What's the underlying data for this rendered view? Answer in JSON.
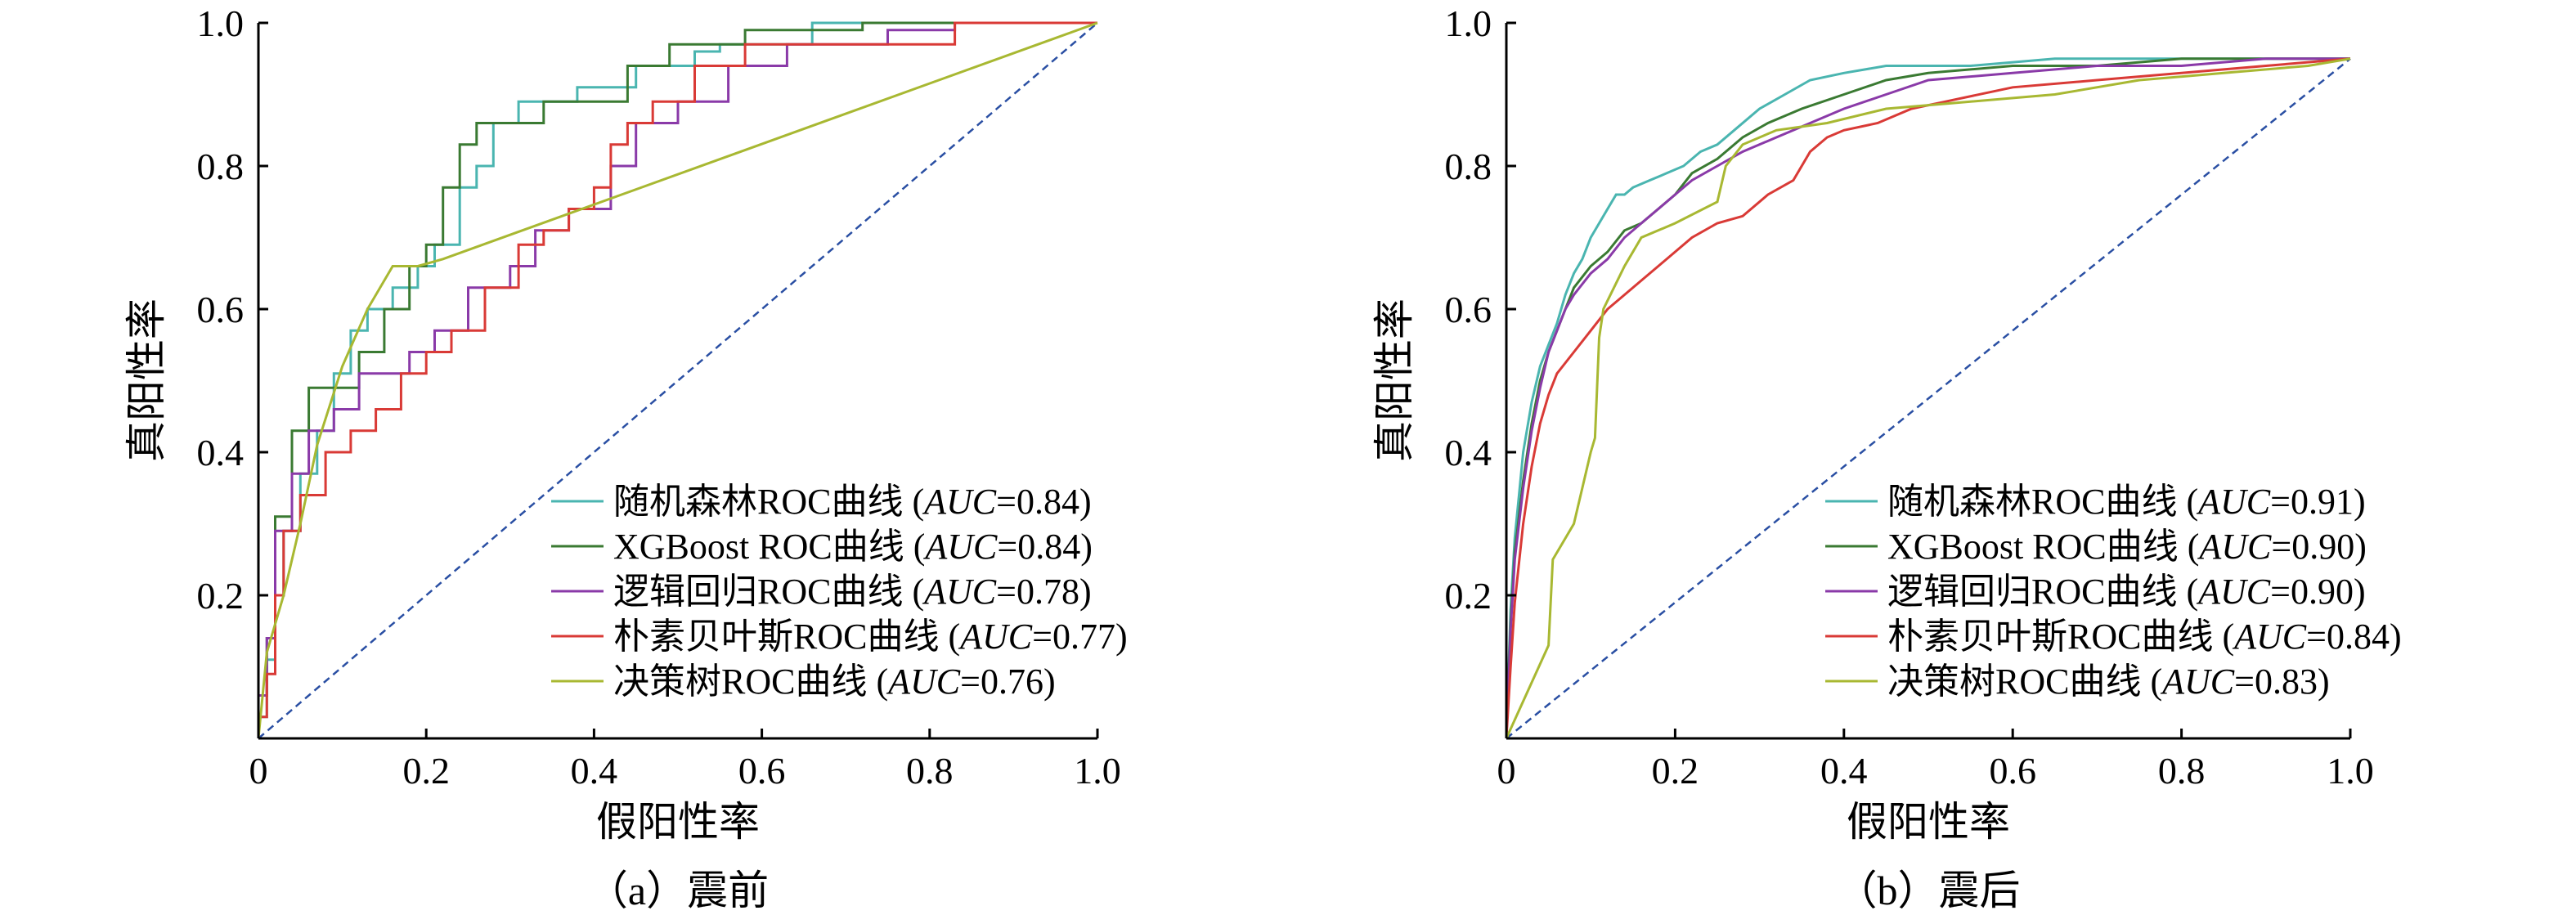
{
  "chart_data": [
    {
      "type": "line",
      "caption": "（a）震前",
      "xlabel": "假阳性率",
      "ylabel": "真阳性率",
      "xlim": [
        0,
        1
      ],
      "ylim": [
        0,
        1
      ],
      "xticks": [
        "0",
        "0.2",
        "0.4",
        "0.6",
        "0.8",
        "1.0"
      ],
      "yticks": [
        "0.2",
        "0.4",
        "0.6",
        "0.8",
        "1.0"
      ],
      "grid": false,
      "legend_position": "bottom-right",
      "diagonal": {
        "x": [
          0,
          1
        ],
        "y": [
          0,
          1
        ],
        "color": "#2a4fa3",
        "style": "dashed"
      },
      "series": [
        {
          "name": "随机森林ROC曲线",
          "auc_label": "AUC",
          "auc_value": "=0.84",
          "color": "#4ab5b0",
          "x": [
            0,
            0,
            0.01,
            0.01,
            0.02,
            0.02,
            0.03,
            0.03,
            0.05,
            0.05,
            0.07,
            0.07,
            0.09,
            0.09,
            0.11,
            0.11,
            0.13,
            0.13,
            0.16,
            0.16,
            0.19,
            0.19,
            0.21,
            0.21,
            0.24,
            0.24,
            0.26,
            0.26,
            0.28,
            0.28,
            0.31,
            0.31,
            0.38,
            0.38,
            0.45,
            0.45,
            0.52,
            0.52,
            0.55,
            0.55,
            0.66,
            0.66,
            0.78,
            0.78,
            1.0
          ],
          "y": [
            0,
            0.03,
            0.03,
            0.11,
            0.11,
            0.2,
            0.2,
            0.29,
            0.29,
            0.37,
            0.37,
            0.43,
            0.43,
            0.51,
            0.51,
            0.57,
            0.57,
            0.6,
            0.6,
            0.63,
            0.63,
            0.66,
            0.66,
            0.69,
            0.69,
            0.77,
            0.77,
            0.8,
            0.8,
            0.86,
            0.86,
            0.89,
            0.89,
            0.91,
            0.91,
            0.94,
            0.94,
            0.96,
            0.96,
            0.97,
            0.97,
            1.0,
            1.0,
            1.0,
            1.0
          ]
        },
        {
          "name": "XGBoost ROC曲线",
          "auc_label": "AUC",
          "auc_value": "=0.84",
          "color": "#3a7a32",
          "x": [
            0,
            0,
            0.01,
            0.01,
            0.02,
            0.02,
            0.04,
            0.04,
            0.06,
            0.06,
            0.12,
            0.12,
            0.15,
            0.15,
            0.18,
            0.18,
            0.2,
            0.2,
            0.22,
            0.22,
            0.24,
            0.24,
            0.26,
            0.26,
            0.29,
            0.29,
            0.34,
            0.34,
            0.44,
            0.44,
            0.49,
            0.49,
            0.58,
            0.58,
            0.72,
            0.72,
            1.0
          ],
          "y": [
            0,
            0.06,
            0.06,
            0.14,
            0.14,
            0.31,
            0.31,
            0.43,
            0.43,
            0.49,
            0.49,
            0.54,
            0.54,
            0.6,
            0.6,
            0.66,
            0.66,
            0.69,
            0.69,
            0.77,
            0.77,
            0.83,
            0.83,
            0.86,
            0.86,
            0.86,
            0.86,
            0.89,
            0.89,
            0.94,
            0.94,
            0.97,
            0.97,
            0.99,
            0.99,
            1.0,
            1.0
          ]
        },
        {
          "name": "逻辑回归ROC曲线",
          "auc_label": "AUC",
          "auc_value": "=0.78",
          "color": "#8a3aa8",
          "x": [
            0,
            0,
            0.01,
            0.01,
            0.02,
            0.02,
            0.04,
            0.04,
            0.06,
            0.06,
            0.09,
            0.09,
            0.12,
            0.12,
            0.18,
            0.18,
            0.21,
            0.21,
            0.25,
            0.25,
            0.3,
            0.3,
            0.33,
            0.33,
            0.37,
            0.37,
            0.42,
            0.42,
            0.45,
            0.45,
            0.5,
            0.5,
            0.56,
            0.56,
            0.63,
            0.63,
            0.7,
            0.7,
            0.75,
            0.75,
            0.83,
            0.83,
            1.0
          ],
          "y": [
            0,
            0.06,
            0.06,
            0.14,
            0.14,
            0.29,
            0.29,
            0.37,
            0.37,
            0.43,
            0.43,
            0.46,
            0.46,
            0.51,
            0.51,
            0.54,
            0.54,
            0.57,
            0.57,
            0.63,
            0.63,
            0.66,
            0.66,
            0.71,
            0.71,
            0.74,
            0.74,
            0.8,
            0.8,
            0.86,
            0.86,
            0.89,
            0.89,
            0.94,
            0.94,
            0.97,
            0.97,
            0.97,
            0.97,
            0.99,
            0.99,
            1.0,
            1.0
          ]
        },
        {
          "name": "朴素贝叶斯ROC曲线",
          "auc_label": "AUC",
          "auc_value": "=0.77",
          "color": "#d93a36",
          "x": [
            0,
            0,
            0.01,
            0.01,
            0.02,
            0.02,
            0.03,
            0.03,
            0.05,
            0.05,
            0.08,
            0.08,
            0.11,
            0.11,
            0.14,
            0.14,
            0.17,
            0.17,
            0.2,
            0.2,
            0.23,
            0.23,
            0.27,
            0.27,
            0.31,
            0.31,
            0.34,
            0.34,
            0.37,
            0.37,
            0.4,
            0.4,
            0.42,
            0.42,
            0.44,
            0.44,
            0.47,
            0.47,
            0.52,
            0.52,
            0.58,
            0.58,
            0.66,
            0.66,
            0.83,
            0.83,
            1.0
          ],
          "y": [
            0,
            0.03,
            0.03,
            0.09,
            0.09,
            0.2,
            0.2,
            0.29,
            0.29,
            0.34,
            0.34,
            0.4,
            0.4,
            0.43,
            0.43,
            0.46,
            0.46,
            0.51,
            0.51,
            0.54,
            0.54,
            0.57,
            0.57,
            0.63,
            0.63,
            0.69,
            0.69,
            0.71,
            0.71,
            0.74,
            0.74,
            0.77,
            0.77,
            0.83,
            0.83,
            0.86,
            0.86,
            0.89,
            0.89,
            0.94,
            0.94,
            0.97,
            0.97,
            0.97,
            0.97,
            1.0,
            1.0
          ]
        },
        {
          "name": "决策树ROC曲线",
          "auc_label": "AUC",
          "auc_value": "=0.76",
          "color": "#a8b832",
          "x": [
            0,
            0.01,
            0.03,
            0.05,
            0.07,
            0.1,
            0.13,
            0.16,
            0.19,
            0.22,
            1.0
          ],
          "y": [
            0,
            0.12,
            0.2,
            0.3,
            0.41,
            0.52,
            0.6,
            0.66,
            0.66,
            0.67,
            1.0
          ]
        }
      ]
    },
    {
      "type": "line",
      "caption": "（b）震后",
      "xlabel": "假阳性率",
      "ylabel": "真阳性率",
      "xlim": [
        0,
        1
      ],
      "ylim": [
        0,
        1
      ],
      "xticks": [
        "0",
        "0.2",
        "0.4",
        "0.6",
        "0.8",
        "1.0"
      ],
      "yticks": [
        "0.2",
        "0.4",
        "0.6",
        "0.8",
        "1.0"
      ],
      "grid": false,
      "legend_position": "bottom-right",
      "diagonal": {
        "x": [
          0,
          1
        ],
        "y": [
          0,
          0.95
        ],
        "color": "#2a4fa3",
        "style": "dashed"
      },
      "series": [
        {
          "name": "随机森林ROC曲线",
          "auc_label": "AUC",
          "auc_value": "=0.91",
          "color": "#4ab5b0",
          "x": [
            0,
            0.005,
            0.01,
            0.015,
            0.02,
            0.03,
            0.04,
            0.05,
            0.06,
            0.07,
            0.08,
            0.09,
            0.1,
            0.11,
            0.12,
            0.13,
            0.14,
            0.15,
            0.17,
            0.19,
            0.21,
            0.23,
            0.25,
            0.27,
            0.3,
            0.33,
            0.36,
            0.4,
            0.45,
            0.55,
            0.65,
            0.75,
            0.85,
            0.95,
            1.0
          ],
          "y": [
            0,
            0.18,
            0.28,
            0.34,
            0.4,
            0.47,
            0.52,
            0.55,
            0.58,
            0.62,
            0.65,
            0.67,
            0.7,
            0.72,
            0.74,
            0.76,
            0.76,
            0.77,
            0.78,
            0.79,
            0.8,
            0.82,
            0.83,
            0.85,
            0.88,
            0.9,
            0.92,
            0.93,
            0.94,
            0.94,
            0.95,
            0.95,
            0.95,
            0.95,
            0.95
          ]
        },
        {
          "name": "XGBoost ROC曲线",
          "auc_label": "AUC",
          "auc_value": "=0.90",
          "color": "#3a7a32",
          "x": [
            0,
            0.005,
            0.01,
            0.02,
            0.03,
            0.04,
            0.05,
            0.06,
            0.07,
            0.08,
            0.1,
            0.12,
            0.14,
            0.16,
            0.18,
            0.2,
            0.22,
            0.25,
            0.28,
            0.31,
            0.35,
            0.4,
            0.45,
            0.5,
            0.6,
            0.7,
            0.8,
            0.9,
            1.0
          ],
          "y": [
            0,
            0.16,
            0.26,
            0.36,
            0.44,
            0.5,
            0.54,
            0.57,
            0.6,
            0.63,
            0.66,
            0.68,
            0.71,
            0.72,
            0.74,
            0.76,
            0.79,
            0.81,
            0.84,
            0.86,
            0.88,
            0.9,
            0.92,
            0.93,
            0.94,
            0.94,
            0.95,
            0.95,
            0.95
          ]
        },
        {
          "name": "逻辑回归ROC曲线",
          "auc_label": "AUC",
          "auc_value": "=0.90",
          "color": "#8a3aa8",
          "x": [
            0,
            0.005,
            0.01,
            0.02,
            0.03,
            0.04,
            0.05,
            0.06,
            0.07,
            0.08,
            0.1,
            0.12,
            0.14,
            0.16,
            0.18,
            0.2,
            0.22,
            0.25,
            0.28,
            0.32,
            0.36,
            0.4,
            0.45,
            0.5,
            0.6,
            0.7,
            0.8,
            0.9,
            1.0
          ],
          "y": [
            0,
            0.15,
            0.25,
            0.35,
            0.43,
            0.49,
            0.54,
            0.57,
            0.6,
            0.62,
            0.65,
            0.67,
            0.7,
            0.72,
            0.74,
            0.76,
            0.78,
            0.8,
            0.82,
            0.84,
            0.86,
            0.88,
            0.9,
            0.92,
            0.93,
            0.94,
            0.94,
            0.95,
            0.95
          ]
        },
        {
          "name": "朴素贝叶斯ROC曲线",
          "auc_label": "AUC",
          "auc_value": "=0.84",
          "color": "#d93a36",
          "x": [
            0,
            0.005,
            0.01,
            0.02,
            0.03,
            0.04,
            0.05,
            0.06,
            0.08,
            0.1,
            0.12,
            0.14,
            0.16,
            0.18,
            0.2,
            0.22,
            0.25,
            0.28,
            0.31,
            0.34,
            0.36,
            0.38,
            0.4,
            0.44,
            0.48,
            0.52,
            0.6,
            0.7,
            0.8,
            0.9,
            1.0
          ],
          "y": [
            0,
            0.1,
            0.19,
            0.3,
            0.38,
            0.44,
            0.48,
            0.51,
            0.54,
            0.57,
            0.6,
            0.62,
            0.64,
            0.66,
            0.68,
            0.7,
            0.72,
            0.73,
            0.76,
            0.78,
            0.82,
            0.84,
            0.85,
            0.86,
            0.88,
            0.89,
            0.91,
            0.92,
            0.93,
            0.94,
            0.95
          ]
        },
        {
          "name": "决策树ROC曲线",
          "auc_label": "AUC",
          "auc_value": "=0.83",
          "color": "#a8b832",
          "x": [
            0,
            0.05,
            0.055,
            0.08,
            0.1,
            0.105,
            0.11,
            0.115,
            0.14,
            0.16,
            0.2,
            0.25,
            0.26,
            0.28,
            0.32,
            0.38,
            0.45,
            0.55,
            0.65,
            0.75,
            0.85,
            0.95,
            1.0
          ],
          "y": [
            0,
            0.13,
            0.25,
            0.3,
            0.4,
            0.42,
            0.56,
            0.6,
            0.66,
            0.7,
            0.72,
            0.75,
            0.8,
            0.83,
            0.85,
            0.86,
            0.88,
            0.89,
            0.9,
            0.92,
            0.93,
            0.94,
            0.95
          ]
        }
      ]
    }
  ]
}
